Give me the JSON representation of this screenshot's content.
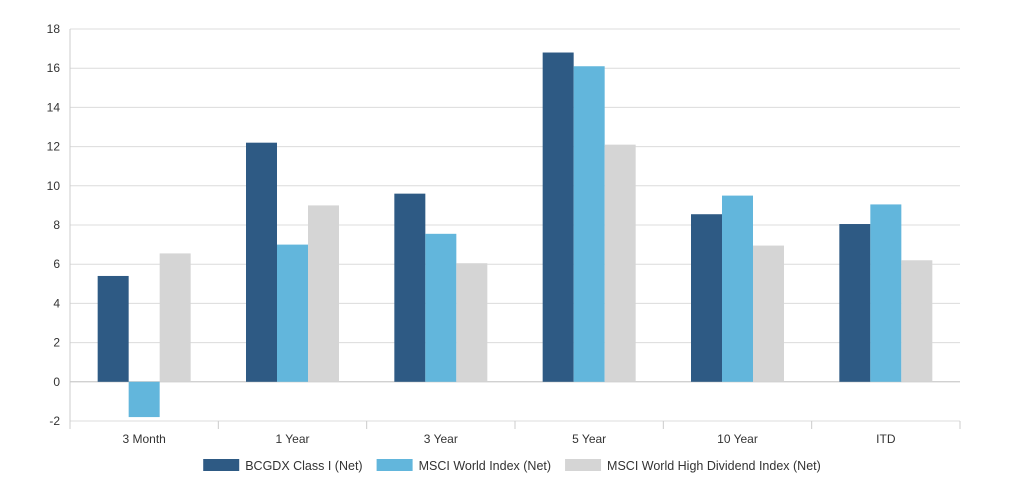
{
  "chart_data": {
    "type": "bar",
    "categories": [
      "3 Month",
      "1 Year",
      "3 Year",
      "5 Year",
      "10 Year",
      "ITD"
    ],
    "series": [
      {
        "name": "BCGDX Class I (Net)",
        "color": "#2e5a84",
        "values": [
          5.4,
          12.2,
          9.6,
          16.8,
          8.55,
          8.05
        ]
      },
      {
        "name": "MSCI World Index (Net)",
        "color": "#62b6dc",
        "values": [
          -1.8,
          7.0,
          7.55,
          16.1,
          9.5,
          9.05
        ]
      },
      {
        "name": "MSCI World High Dividend Index (Net)",
        "color": "#d5d5d5",
        "values": [
          6.55,
          9.0,
          6.05,
          12.1,
          6.95,
          6.2
        ]
      }
    ],
    "title": "",
    "xlabel": "",
    "ylabel": "",
    "ylim": [
      -2,
      18
    ],
    "yticks": [
      "-2",
      "0",
      "2",
      "4",
      "6",
      "8",
      "10",
      "12",
      "14",
      "16",
      "18"
    ],
    "grid": true,
    "legend_position": "bottom"
  }
}
